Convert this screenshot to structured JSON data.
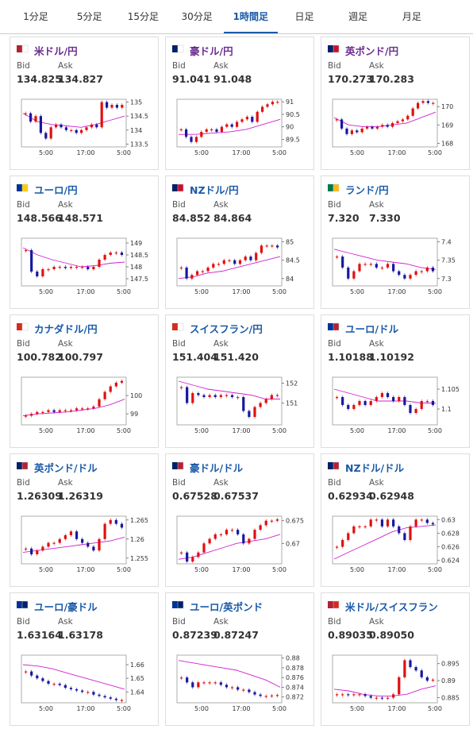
{
  "tabs": [
    "1分足",
    "5分足",
    "15分足",
    "30分足",
    "1時間足",
    "日足",
    "週足",
    "月足"
  ],
  "active_tab": 4,
  "labels": {
    "bid": "Bid",
    "ask": "Ask"
  },
  "xticks": [
    "5:00",
    "17:00",
    "5:00"
  ],
  "cards": [
    {
      "title": "米ドル/円",
      "title_color": "#6a2c91",
      "bid": "134.825",
      "ask": "134.827",
      "ylim": [
        133.4,
        135.1
      ],
      "yticks": [
        133.5,
        134,
        134.5,
        135
      ],
      "closes": [
        134.6,
        134.3,
        134.5,
        133.9,
        133.7,
        134.1,
        134.2,
        134.1,
        134.0,
        134.0,
        133.9,
        134.0,
        134.1,
        134.2,
        134.1,
        135.0,
        134.8,
        134.9,
        134.8,
        134.9
      ],
      "ma": [
        134.6,
        134.3,
        134.2,
        134.15,
        134.1,
        134.2,
        134.35,
        134.5
      ]
    },
    {
      "title": "豪ドル/円",
      "title_color": "#6a2c91",
      "bid": "91.041",
      "ask": "91.048",
      "ylim": [
        89.2,
        91.1
      ],
      "yticks": [
        89.5,
        90,
        90.5,
        91
      ],
      "closes": [
        89.9,
        89.6,
        89.4,
        89.6,
        89.8,
        89.9,
        89.9,
        89.8,
        90.0,
        90.1,
        90.0,
        90.2,
        90.3,
        90.4,
        90.2,
        90.6,
        90.8,
        90.9,
        91.0,
        91.0
      ],
      "ma": [
        89.7,
        89.7,
        89.75,
        89.8,
        89.9,
        90.1,
        90.3
      ]
    },
    {
      "title": "英ポンド/円",
      "title_color": "#6a2c91",
      "bid": "170.273",
      "ask": "170.283",
      "ylim": [
        167.8,
        170.4
      ],
      "yticks": [
        168,
        169,
        170
      ],
      "closes": [
        169.3,
        168.8,
        168.5,
        168.7,
        168.6,
        168.8,
        168.9,
        168.8,
        168.9,
        169.0,
        168.9,
        169.1,
        169.2,
        169.3,
        169.5,
        169.9,
        170.2,
        170.3,
        170.2,
        170.2
      ],
      "ma": [
        169.4,
        169.0,
        168.9,
        168.9,
        169.0,
        169.1,
        169.4,
        169.7
      ]
    },
    {
      "title": "ユーロ/円",
      "title_color": "#1a5aa8",
      "bid": "148.566",
      "ask": "148.571",
      "ylim": [
        147.2,
        149.2
      ],
      "yticks": [
        147.5,
        148,
        148.5,
        149
      ],
      "closes": [
        148.7,
        147.8,
        147.6,
        147.9,
        147.9,
        148.0,
        148.0,
        147.95,
        148.0,
        148.0,
        148.0,
        147.9,
        148.0,
        148.3,
        148.5,
        148.6,
        148.6,
        148.5
      ],
      "ma": [
        148.8,
        148.5,
        148.3,
        148.15,
        148.0,
        148.05,
        148.15,
        148.2
      ]
    },
    {
      "title": "NZドル/円",
      "title_color": "#1a5aa8",
      "bid": "84.852",
      "ask": "84.864",
      "ylim": [
        83.8,
        85.1
      ],
      "yticks": [
        84,
        84.5,
        85
      ],
      "closes": [
        84.3,
        84.0,
        84.1,
        84.2,
        84.2,
        84.3,
        84.4,
        84.4,
        84.5,
        84.5,
        84.4,
        84.5,
        84.6,
        84.5,
        84.7,
        84.9,
        84.9,
        84.9,
        84.85
      ],
      "ma": [
        84.0,
        84.05,
        84.15,
        84.2,
        84.3,
        84.4,
        84.5,
        84.6
      ]
    },
    {
      "title": "ランド/円",
      "title_color": "#1a5aa8",
      "bid": "7.320",
      "ask": "7.330",
      "ylim": [
        7.28,
        7.41
      ],
      "yticks": [
        7.3,
        7.35,
        7.4
      ],
      "closes": [
        7.36,
        7.33,
        7.3,
        7.32,
        7.34,
        7.34,
        7.34,
        7.33,
        7.33,
        7.34,
        7.32,
        7.31,
        7.3,
        7.31,
        7.32,
        7.32,
        7.33,
        7.32
      ],
      "ma": [
        7.38,
        7.37,
        7.36,
        7.35,
        7.345,
        7.34,
        7.33,
        7.325
      ]
    },
    {
      "title": "カナダドル/円",
      "title_color": "#1a5aa8",
      "bid": "100.782",
      "ask": "100.797",
      "ylim": [
        98.4,
        101.0
      ],
      "yticks": [
        99,
        100
      ],
      "closes": [
        98.9,
        99.0,
        99.1,
        99.1,
        99.2,
        99.1,
        99.2,
        99.2,
        99.2,
        99.3,
        99.3,
        99.3,
        99.4,
        99.8,
        100.2,
        100.5,
        100.7,
        100.8
      ],
      "ma": [
        98.9,
        99.0,
        99.05,
        99.1,
        99.2,
        99.3,
        99.5,
        99.8
      ]
    },
    {
      "title": "スイスフラン/円",
      "title_color": "#1a5aa8",
      "bid": "151.404",
      "ask": "151.420",
      "ylim": [
        149.9,
        152.3
      ],
      "yticks": [
        151,
        152
      ],
      "closes": [
        151.8,
        151.0,
        151.5,
        151.4,
        151.3,
        151.4,
        151.3,
        151.4,
        151.4,
        151.3,
        151.3,
        150.6,
        150.3,
        150.8,
        151.0,
        151.2,
        151.4,
        151.4
      ],
      "ma": [
        152.1,
        151.9,
        151.7,
        151.6,
        151.5,
        151.4,
        151.2,
        151.2
      ]
    },
    {
      "title": "ユーロ/ドル",
      "title_color": "#1a5aa8",
      "bid": "1.10188",
      "ask": "1.10192",
      "ylim": [
        1.096,
        1.108
      ],
      "yticks": [
        1.1,
        1.105
      ],
      "closes": [
        1.103,
        1.101,
        1.1,
        1.101,
        1.102,
        1.101,
        1.102,
        1.103,
        1.104,
        1.103,
        1.102,
        1.103,
        1.101,
        1.099,
        1.1,
        1.102,
        1.102,
        1.101
      ],
      "ma": [
        1.105,
        1.104,
        1.103,
        1.102,
        1.102,
        1.102,
        1.1015,
        1.1015
      ]
    },
    {
      "title": "英ポンド/ドル",
      "title_color": "#1a5aa8",
      "bid": "1.26309",
      "ask": "1.26319",
      "ylim": [
        1.2535,
        1.266
      ],
      "yticks": [
        1.255,
        1.26,
        1.265
      ],
      "closes": [
        1.2575,
        1.256,
        1.257,
        1.258,
        1.259,
        1.259,
        1.26,
        1.261,
        1.262,
        1.26,
        1.259,
        1.258,
        1.257,
        1.26,
        1.264,
        1.265,
        1.264,
        1.263
      ],
      "ma": [
        1.2565,
        1.257,
        1.2575,
        1.258,
        1.2585,
        1.259,
        1.2595,
        1.2605
      ]
    },
    {
      "title": "豪ドル/ドル",
      "title_color": "#1a5aa8",
      "bid": "0.67528",
      "ask": "0.67537",
      "ylim": [
        0.6655,
        0.676
      ],
      "yticks": [
        0.67,
        0.675
      ],
      "closes": [
        0.668,
        0.666,
        0.667,
        0.668,
        0.67,
        0.671,
        0.672,
        0.672,
        0.673,
        0.673,
        0.672,
        0.67,
        0.671,
        0.673,
        0.674,
        0.675,
        0.675,
        0.6753
      ],
      "ma": [
        0.6665,
        0.667,
        0.668,
        0.669,
        0.67,
        0.6705,
        0.671,
        0.672
      ]
    },
    {
      "title": "NZドル/ドル",
      "title_color": "#1a5aa8",
      "bid": "0.62934",
      "ask": "0.62948",
      "ylim": [
        0.6235,
        0.6305
      ],
      "yticks": [
        0.624,
        0.626,
        0.628,
        0.63
      ],
      "closes": [
        0.626,
        0.627,
        0.628,
        0.629,
        0.629,
        0.629,
        0.63,
        0.63,
        0.629,
        0.63,
        0.629,
        0.628,
        0.627,
        0.629,
        0.63,
        0.63,
        0.6295,
        0.6293
      ],
      "ma": [
        0.6242,
        0.6252,
        0.6262,
        0.6272,
        0.6282,
        0.6288,
        0.629,
        0.6292
      ]
    },
    {
      "title": "ユーロ/豪ドル",
      "title_color": "#1a5aa8",
      "bid": "1.63164",
      "ask": "1.63178",
      "ylim": [
        1.632,
        1.667
      ],
      "yticks": [
        1.64,
        1.65,
        1.66
      ],
      "closes": [
        1.655,
        1.652,
        1.65,
        1.648,
        1.646,
        1.646,
        1.645,
        1.643,
        1.642,
        1.641,
        1.64,
        1.64,
        1.638,
        1.637,
        1.636,
        1.635,
        1.634,
        1.634
      ],
      "ma": [
        1.66,
        1.659,
        1.657,
        1.654,
        1.651,
        1.648,
        1.645,
        1.642
      ]
    },
    {
      "title": "ユーロ/英ポンド",
      "title_color": "#1a5aa8",
      "bid": "0.87239",
      "ask": "0.87247",
      "ylim": [
        0.8708,
        0.8806
      ],
      "yticks": [
        0.872,
        0.874,
        0.876,
        0.878,
        0.88
      ],
      "closes": [
        0.876,
        0.875,
        0.874,
        0.875,
        0.875,
        0.875,
        0.875,
        0.8745,
        0.874,
        0.874,
        0.8735,
        0.8735,
        0.873,
        0.8725,
        0.8722,
        0.8722,
        0.8723,
        0.8724
      ],
      "ma": [
        0.8795,
        0.879,
        0.8785,
        0.878,
        0.8775,
        0.8765,
        0.8755,
        0.874
      ]
    },
    {
      "title": "米ドル/スイスフラン",
      "title_color": "#1a5aa8",
      "bid": "0.89035",
      "ask": "0.89050",
      "ylim": [
        0.8835,
        0.8975
      ],
      "yticks": [
        0.885,
        0.89,
        0.895
      ],
      "closes": [
        0.886,
        0.886,
        0.8858,
        0.886,
        0.886,
        0.8855,
        0.885,
        0.885,
        0.8848,
        0.885,
        0.886,
        0.891,
        0.896,
        0.894,
        0.893,
        0.891,
        0.89,
        0.8903
      ],
      "ma": [
        0.8875,
        0.887,
        0.886,
        0.8855,
        0.8855,
        0.886,
        0.8875,
        0.8885
      ]
    }
  ]
}
